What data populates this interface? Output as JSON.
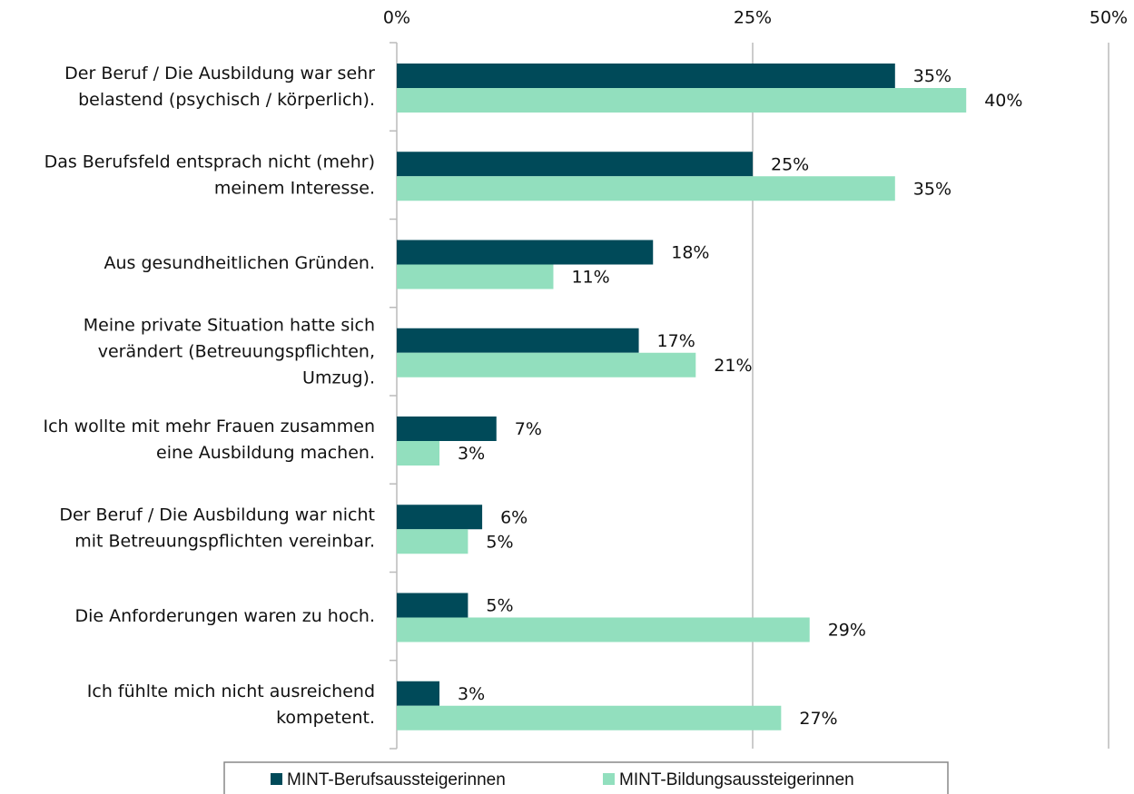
{
  "chart_data": {
    "type": "hbar",
    "categories": [
      "Der Beruf / Die Ausbildung war sehr\nbelastend (psychisch / körperlich).",
      "Das Berufsfeld entsprach nicht (mehr)\nmeinem Interesse.",
      "Aus gesundheitlichen Gründen.",
      "Meine private Situation hatte sich\nverändert (Betreuungspflichten,\nUmzug).",
      "Ich wollte mit mehr Frauen zusammen\neine Ausbildung machen.",
      "Der Beruf / Die Ausbildung war nicht\nmit Betreuungspflichten vereinbar.",
      "Die Anforderungen waren zu hoch.",
      "Ich fühlte mich nicht ausreichend\nkompetent."
    ],
    "series": [
      {
        "name": "MINT-Berufsaussteigerinnen",
        "color": "#004a59",
        "values": [
          35,
          25,
          18,
          17,
          7,
          6,
          5,
          3
        ],
        "value_labels": [
          "35%",
          "25%",
          "18%",
          "17%",
          "7%",
          "6%",
          "5%",
          "3%"
        ]
      },
      {
        "name": "MINT-Bildungsaussteigerinnen",
        "color": "#92dfbe",
        "values": [
          40,
          35,
          11,
          21,
          3,
          5,
          29,
          27
        ],
        "value_labels": [
          "40%",
          "35%",
          "11%",
          "21%",
          "3%",
          "5%",
          "29%",
          "27%"
        ]
      }
    ],
    "xlim": [
      0,
      50
    ],
    "xticks": [
      {
        "value": 0,
        "label": "0%"
      },
      {
        "value": 25,
        "label": "25%"
      },
      {
        "value": 50,
        "label": "50%"
      }
    ],
    "grid": true,
    "legend": "bottom"
  }
}
